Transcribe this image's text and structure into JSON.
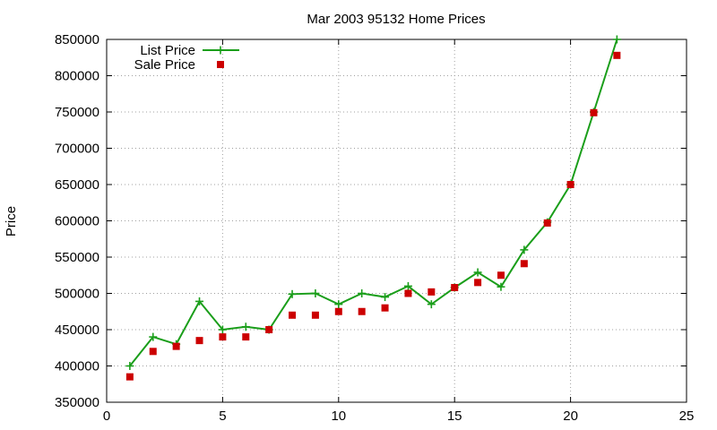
{
  "chart_data": {
    "type": "line",
    "title": "Mar 2003 95132 Home Prices",
    "xlabel": "",
    "ylabel": "Price",
    "xlim": [
      0,
      25
    ],
    "ylim": [
      350000,
      850000
    ],
    "x_ticks": [
      0,
      5,
      10,
      15,
      20,
      25
    ],
    "y_ticks": [
      350000,
      400000,
      450000,
      500000,
      550000,
      600000,
      650000,
      700000,
      750000,
      800000,
      850000
    ],
    "grid": true,
    "legend_position": "top-left",
    "series": [
      {
        "name": "List Price",
        "style": "lines+plus-markers",
        "color": "#1a9e1a",
        "x": [
          1,
          2,
          3,
          4,
          5,
          6,
          7,
          8,
          9,
          10,
          11,
          12,
          13,
          14,
          15,
          16,
          17,
          18,
          19,
          20,
          21,
          22
        ],
        "y": [
          400000,
          440000,
          430000,
          489000,
          450000,
          454000,
          450000,
          499000,
          500000,
          485000,
          500000,
          495000,
          510000,
          485000,
          508000,
          529000,
          509000,
          560000,
          598000,
          650000,
          750000,
          850000
        ]
      },
      {
        "name": "Sale Price",
        "style": "square-markers",
        "color": "#cc0000",
        "x": [
          1,
          2,
          3,
          4,
          5,
          6,
          7,
          8,
          9,
          10,
          11,
          12,
          13,
          14,
          15,
          16,
          17,
          18,
          19,
          20,
          21,
          22
        ],
        "y": [
          385000,
          420000,
          427000,
          435000,
          440000,
          440000,
          450000,
          470000,
          470000,
          475000,
          475000,
          480000,
          500000,
          502000,
          508000,
          515000,
          525000,
          541000,
          597000,
          650000,
          749000,
          828000
        ]
      }
    ]
  }
}
